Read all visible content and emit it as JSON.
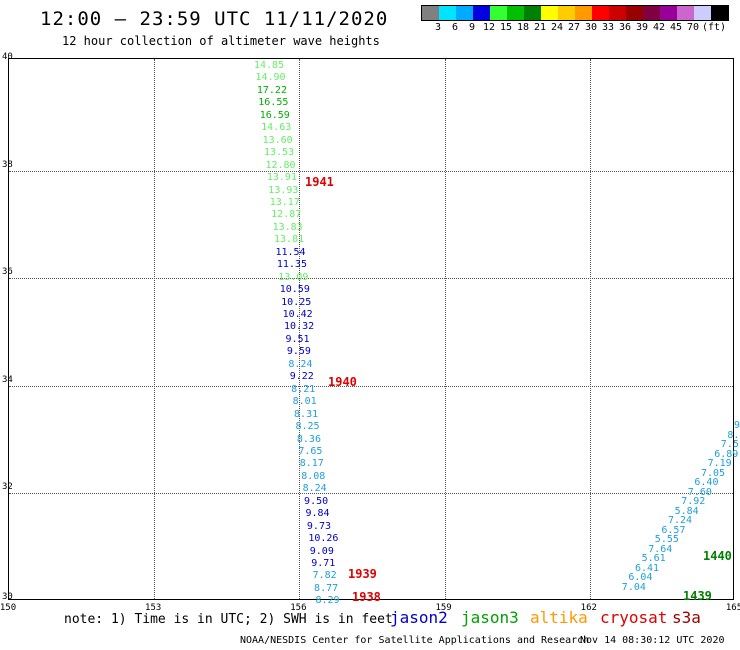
{
  "header": {
    "title": "12:00 – 23:59 UTC 11/11/2020",
    "subtitle": "12 hour collection of altimeter wave heights"
  },
  "color_scale": {
    "colors": [
      "#808080",
      "#00e5ff",
      "#00aaff",
      "#0000e0",
      "#33ff33",
      "#00c000",
      "#008000",
      "#ffff00",
      "#ffcc00",
      "#ff9900",
      "#ff0000",
      "#cc0000",
      "#990000",
      "#800040",
      "#990099",
      "#cc66cc",
      "#ccccff",
      "#000000"
    ],
    "labels": [
      "3",
      "6",
      "9",
      "12",
      "15",
      "18",
      "21",
      "24",
      "27",
      "30",
      "33",
      "36",
      "39",
      "42",
      "45",
      "70",
      "(ft)"
    ]
  },
  "axes": {
    "y_ticks": [
      "40",
      "38",
      "36",
      "34",
      "32",
      "30"
    ],
    "x_ticks": [
      "150",
      "153",
      "156",
      "159",
      "162",
      "165"
    ]
  },
  "tracks": [
    {
      "name": "track-a",
      "values": [
        {
          "v": "14.85",
          "c": "#66ee66"
        },
        {
          "v": "14.90",
          "c": "#66ee66"
        },
        {
          "v": "17.22",
          "c": "#00b000"
        },
        {
          "v": "16.55",
          "c": "#00b000"
        },
        {
          "v": "16.59",
          "c": "#00b000"
        },
        {
          "v": "14.63",
          "c": "#66ee66"
        },
        {
          "v": "13.60",
          "c": "#66ee66"
        },
        {
          "v": "13.53",
          "c": "#66ee66"
        },
        {
          "v": "12.80",
          "c": "#66ee66"
        },
        {
          "v": "13.91",
          "c": "#66ee66"
        },
        {
          "v": "13.93",
          "c": "#66ee66"
        },
        {
          "v": "13.17",
          "c": "#66ee66"
        },
        {
          "v": "12.87",
          "c": "#66ee66"
        },
        {
          "v": "13.83",
          "c": "#66ee66"
        },
        {
          "v": "13.81",
          "c": "#66ee66"
        },
        {
          "v": "11.54",
          "c": "#0000cc"
        },
        {
          "v": "11.35",
          "c": "#0000cc"
        },
        {
          "v": "13.09",
          "c": "#66ee66"
        },
        {
          "v": "10.59",
          "c": "#0000cc"
        },
        {
          "v": "10.25",
          "c": "#0000cc"
        },
        {
          "v": "10.42",
          "c": "#0000cc"
        },
        {
          "v": "10.32",
          "c": "#0000cc"
        },
        {
          "v": "9.51",
          "c": "#0000cc"
        },
        {
          "v": "9.59",
          "c": "#0000cc"
        },
        {
          "v": "8.24",
          "c": "#1e9edc"
        },
        {
          "v": "9.22",
          "c": "#0000cc"
        },
        {
          "v": "8.21",
          "c": "#1e9edc"
        },
        {
          "v": "8.01",
          "c": "#1e9edc"
        },
        {
          "v": "8.31",
          "c": "#1e9edc"
        },
        {
          "v": "8.25",
          "c": "#1e9edc"
        },
        {
          "v": "8.36",
          "c": "#1e9edc"
        },
        {
          "v": "7.65",
          "c": "#1e9edc"
        },
        {
          "v": "8.17",
          "c": "#1e9edc"
        },
        {
          "v": "8.08",
          "c": "#1e9edc"
        },
        {
          "v": "8.24",
          "c": "#1e9edc"
        },
        {
          "v": "9.50",
          "c": "#0000cc"
        },
        {
          "v": "9.84",
          "c": "#0000cc"
        },
        {
          "v": "9.73",
          "c": "#0000cc"
        },
        {
          "v": "10.26",
          "c": "#0000cc"
        },
        {
          "v": "9.09",
          "c": "#0000cc"
        },
        {
          "v": "9.71",
          "c": "#0000cc"
        },
        {
          "v": "7.82",
          "c": "#1e9edc"
        },
        {
          "v": "8.77",
          "c": "#1e9edc"
        },
        {
          "v": "8.29",
          "c": "#1e9edc"
        }
      ]
    },
    {
      "name": "track-b",
      "values": [
        {
          "v": "9",
          "c": "#1e9edc"
        },
        {
          "v": "8.",
          "c": "#1e9edc"
        },
        {
          "v": "7.5",
          "c": "#1e9edc"
        },
        {
          "v": "6.89",
          "c": "#1e9edc"
        },
        {
          "v": "7.19",
          "c": "#1e9edc"
        },
        {
          "v": "7.05",
          "c": "#1e9edc"
        },
        {
          "v": "6.40",
          "c": "#1e9edc"
        },
        {
          "v": "7.60",
          "c": "#1e9edc"
        },
        {
          "v": "7.92",
          "c": "#1e9edc"
        },
        {
          "v": "5.84",
          "c": "#1e9edc"
        },
        {
          "v": "7.24",
          "c": "#1e9edc"
        },
        {
          "v": "6.57",
          "c": "#1e9edc"
        },
        {
          "v": "5.55",
          "c": "#1e9edc"
        },
        {
          "v": "7.64",
          "c": "#1e9edc"
        },
        {
          "v": "5.61",
          "c": "#1e9edc"
        },
        {
          "v": "6.41",
          "c": "#1e9edc"
        },
        {
          "v": "6.04",
          "c": "#1e9edc"
        },
        {
          "v": "7.04",
          "c": "#1e9edc"
        }
      ]
    }
  ],
  "time_labels": [
    {
      "text": "1941",
      "color": "#e00000"
    },
    {
      "text": "1940",
      "color": "#e00000"
    },
    {
      "text": "1939",
      "color": "#e00000"
    },
    {
      "text": "1938",
      "color": "#e00000"
    },
    {
      "text": "1440",
      "color": "#008000"
    },
    {
      "text": "1439",
      "color": "#008000"
    }
  ],
  "footer": {
    "note": "note: 1) Time is in UTC; 2) SWH is in feet",
    "satellites": [
      {
        "name": "jason2",
        "color": "#0000cc"
      },
      {
        "name": "jason3",
        "color": "#00a000"
      },
      {
        "name": "altika",
        "color": "#ff9900"
      },
      {
        "name": "cryosat",
        "color": "#e00000"
      },
      {
        "name": "s3a",
        "color": "#990000"
      }
    ],
    "credit": "NOAA/NESDIS Center for Satellite Applications and Research",
    "timestamp": "Nov 14 08:30:12 UTC 2020"
  }
}
